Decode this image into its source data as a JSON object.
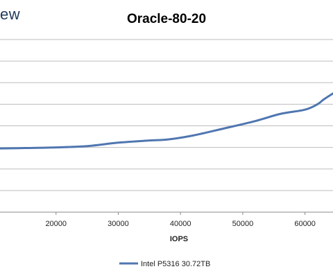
{
  "brand_fragment": "ew",
  "chart_data": {
    "type": "line",
    "title": "Oracle-80-20",
    "xlabel": "IOPS",
    "ylabel": "",
    "xlim": [
      11000,
      64500
    ],
    "ylim": [
      0,
      8
    ],
    "x_ticks": [
      20000,
      30000,
      40000,
      50000,
      60000
    ],
    "grid": true,
    "legend": "bottom",
    "colors": {
      "series": "#4f76b0",
      "grid": "#bdbdbd",
      "axis": "#888888"
    },
    "series": [
      {
        "name": "Intel P5316 30.72TB",
        "x": [
          11000,
          15000,
          20000,
          25000,
          30000,
          35000,
          38000,
          42000,
          47000,
          52000,
          56000,
          60000,
          62000,
          63000,
          64500
        ],
        "y": [
          2.95,
          2.97,
          3.0,
          3.06,
          3.22,
          3.32,
          3.37,
          3.55,
          3.88,
          4.22,
          4.55,
          4.75,
          5.0,
          5.22,
          5.5
        ]
      }
    ]
  }
}
